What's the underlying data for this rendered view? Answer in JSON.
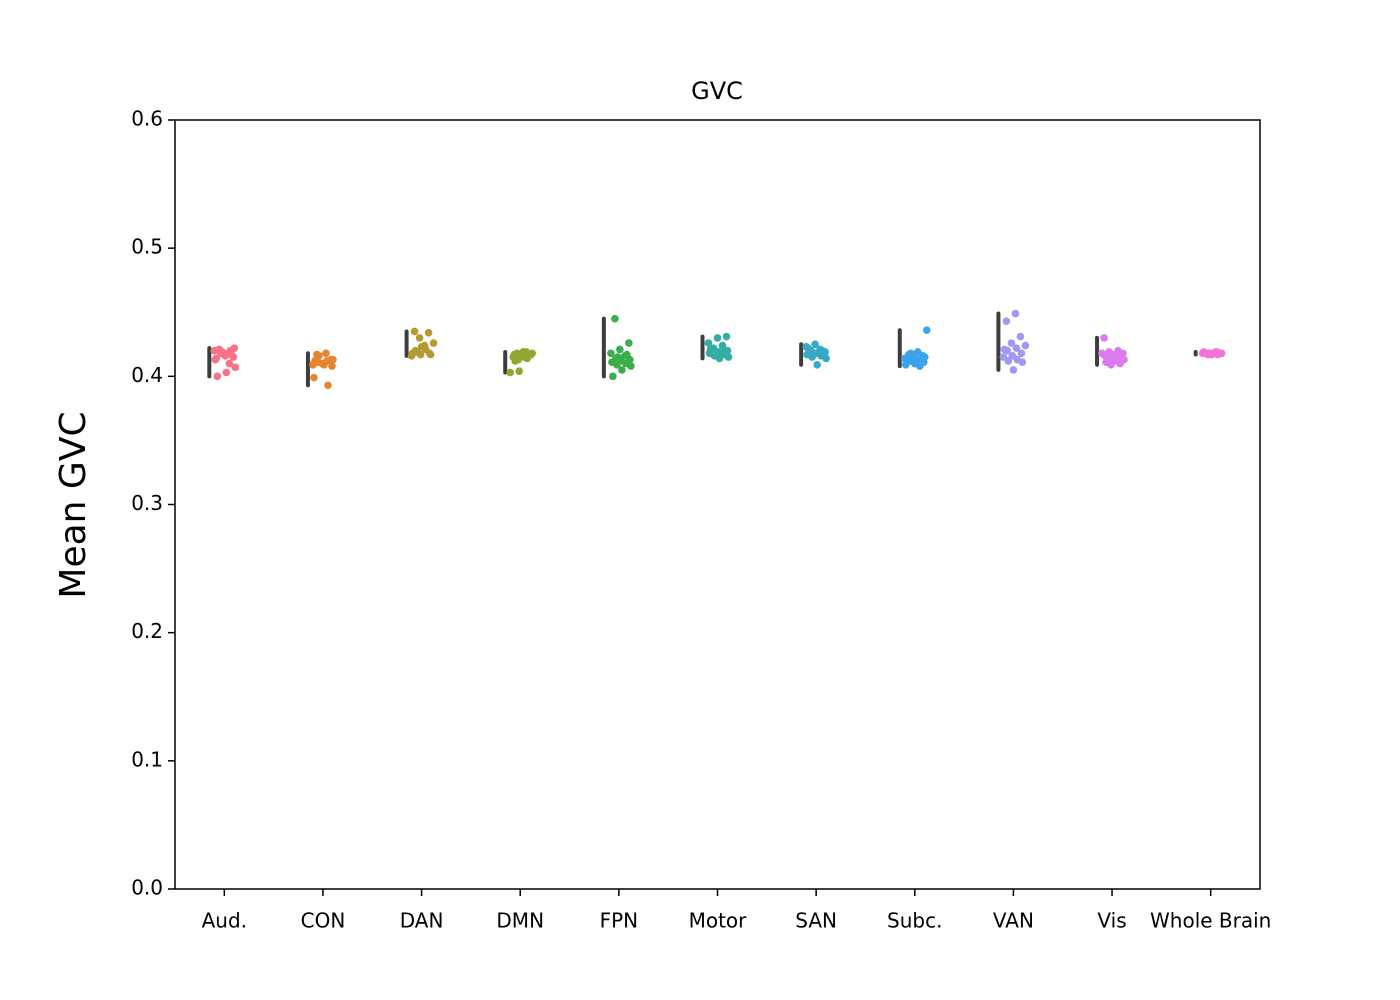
{
  "chart_data": {
    "type": "strip",
    "title": "GVC",
    "y_label": "Mean GVC",
    "categories": [
      "Aud.",
      "CON",
      "DAN",
      "DMN",
      "FPN",
      "Motor",
      "SAN",
      "Subc.",
      "VAN",
      "Vis",
      "Whole Brain"
    ],
    "colors": [
      "#f77189",
      "#e5852e",
      "#b59a32",
      "#90a832",
      "#3aae4a",
      "#36ada4",
      "#38a9c5",
      "#3ba3ec",
      "#9f98f4",
      "#dc7af0",
      "#f572d6"
    ],
    "values": [
      [
        0.42,
        0.418,
        0.421,
        0.415,
        0.417,
        0.413,
        0.41,
        0.419,
        0.422,
        0.416,
        0.414,
        0.42,
        0.418,
        0.407,
        0.403,
        0.4,
        0.417,
        0.419
      ],
      [
        0.418,
        0.417,
        0.413,
        0.41,
        0.409,
        0.412,
        0.411,
        0.408,
        0.41,
        0.399,
        0.393,
        0.416,
        0.413,
        0.409,
        0.412
      ],
      [
        0.435,
        0.434,
        0.43,
        0.426,
        0.424,
        0.42,
        0.418,
        0.417,
        0.416,
        0.421,
        0.419,
        0.417,
        0.423,
        0.418
      ],
      [
        0.419,
        0.418,
        0.417,
        0.416,
        0.415,
        0.414,
        0.413,
        0.418,
        0.419,
        0.417,
        0.416,
        0.404,
        0.403,
        0.415,
        0.412
      ],
      [
        0.445,
        0.426,
        0.421,
        0.418,
        0.416,
        0.414,
        0.413,
        0.412,
        0.411,
        0.41,
        0.409,
        0.408,
        0.405,
        0.4,
        0.417,
        0.415
      ],
      [
        0.431,
        0.43,
        0.426,
        0.424,
        0.422,
        0.42,
        0.419,
        0.418,
        0.417,
        0.416,
        0.415,
        0.414,
        0.421,
        0.419
      ],
      [
        0.425,
        0.423,
        0.421,
        0.42,
        0.419,
        0.418,
        0.417,
        0.416,
        0.415,
        0.414,
        0.409,
        0.422,
        0.42
      ],
      [
        0.436,
        0.419,
        0.417,
        0.416,
        0.415,
        0.414,
        0.413,
        0.412,
        0.411,
        0.41,
        0.409,
        0.408,
        0.418,
        0.415
      ],
      [
        0.449,
        0.443,
        0.431,
        0.426,
        0.424,
        0.422,
        0.42,
        0.418,
        0.416,
        0.415,
        0.413,
        0.412,
        0.411,
        0.405,
        0.421
      ],
      [
        0.43,
        0.42,
        0.419,
        0.418,
        0.417,
        0.416,
        0.415,
        0.414,
        0.413,
        0.412,
        0.411,
        0.41,
        0.409,
        0.418,
        0.416
      ],
      [
        0.419,
        0.418,
        0.418,
        0.417,
        0.418,
        0.419,
        0.417,
        0.418,
        0.418,
        0.419,
        0.417,
        0.418
      ]
    ],
    "ylim": [
      0,
      0.6
    ],
    "yticks": [
      {
        "value": 0,
        "label": "0.0"
      },
      0.1,
      0.2,
      0.3,
      0.4,
      0.5,
      0.6
    ]
  }
}
